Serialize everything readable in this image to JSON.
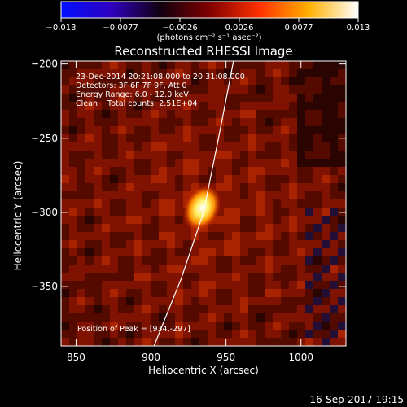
{
  "chart_data": {
    "type": "heatmap",
    "title": "Reconstructed RHESSI Image",
    "xlabel": "Heliocentric X (arcsec)",
    "ylabel": "Heliocentric Y (arcsec)",
    "xlim": [
      840,
      1030
    ],
    "ylim": [
      -390,
      -198
    ],
    "x_ticks": [
      850,
      900,
      950,
      1000
    ],
    "y_ticks": [
      -200,
      -250,
      -300,
      -350
    ],
    "x_tick_labels": [
      "850",
      "900",
      "950",
      "1000"
    ],
    "y_tick_labels": [
      "−200",
      "−250",
      "−300",
      "−350"
    ],
    "colorbar": {
      "range": [
        -0.013,
        0.013
      ],
      "ticks": [
        "−0.013",
        "−0.0077",
        "−0.0026",
        "0.0026",
        "0.0077",
        "0.013"
      ],
      "units": "(photons cm⁻² s⁻¹ asec⁻²)",
      "colors": [
        "#0010ff",
        "#3000c0",
        "#100010",
        "#800000",
        "#ff3000",
        "#ffb000",
        "#ffffff"
      ]
    },
    "annotations": [
      "23-Dec-2014 20:21:08.000 to 20:31:08.000",
      "Detectors: 3F 6F 7F 9F, Att 0",
      "Energy Range: 6.0 - 12.0 keV",
      "Clean    Total counts: 2.51E+04"
    ],
    "peak_label": "Position of Peak = [934,-297]",
    "peak": {
      "x": 934,
      "y": -297,
      "value": 0.013
    },
    "limb_curve": [
      [
        955,
        -198
      ],
      [
        945,
        -250
      ],
      [
        935,
        -300
      ],
      [
        920,
        -345
      ],
      [
        902,
        -390
      ]
    ]
  },
  "footer": {
    "timestamp": "16-Sep-2017 19:15"
  }
}
